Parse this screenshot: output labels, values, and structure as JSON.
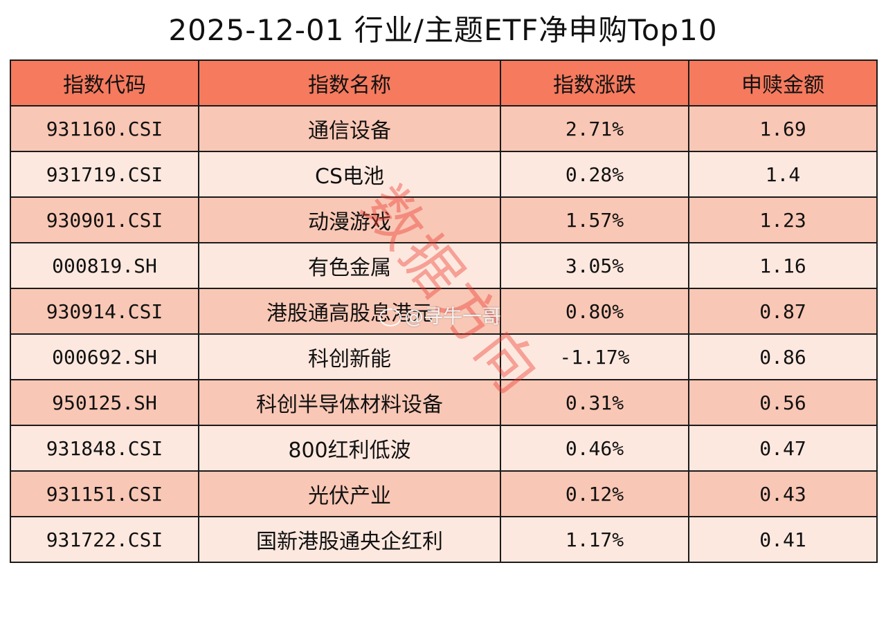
{
  "chart_data": {
    "type": "table",
    "title": "2025-12-01 行业/主题ETF净申购Top10",
    "columns": [
      "指数代码",
      "指数名称",
      "指数涨跌",
      "申赎金额"
    ],
    "rows": [
      {
        "code": "931160.CSI",
        "name": "通信设备",
        "change": "2.71%",
        "amount": "1.69"
      },
      {
        "code": "931719.CSI",
        "name": "CS电池",
        "change": "0.28%",
        "amount": "1.4"
      },
      {
        "code": "930901.CSI",
        "name": "动漫游戏",
        "change": "1.57%",
        "amount": "1.23"
      },
      {
        "code": "000819.SH",
        "name": "有色金属",
        "change": "3.05%",
        "amount": "1.16"
      },
      {
        "code": "930914.CSI",
        "name": "港股通高股息港元",
        "change": "0.80%",
        "amount": "0.87"
      },
      {
        "code": "000692.SH",
        "name": "科创新能",
        "change": "-1.17%",
        "amount": "0.86"
      },
      {
        "code": "950125.SH",
        "name": "科创半导体材料设备",
        "change": "0.31%",
        "amount": "0.56"
      },
      {
        "code": "931848.CSI",
        "name": "800红利低波",
        "change": "0.46%",
        "amount": "0.47"
      },
      {
        "code": "931151.CSI",
        "name": "光伏产业",
        "change": "0.12%",
        "amount": "0.43"
      },
      {
        "code": "931722.CSI",
        "name": "国新港股通央企红利",
        "change": "1.17%",
        "amount": "0.41"
      }
    ]
  },
  "watermark": {
    "stamp_text": "数据方向",
    "handle_text": "@寻牛一哥",
    "icon": "weibo-icon"
  },
  "colors": {
    "header_bg": "#f57a5e",
    "row_odd_bg": "#f9c7b5",
    "row_even_bg": "#fde8df",
    "watermark": "#eb3c32"
  }
}
